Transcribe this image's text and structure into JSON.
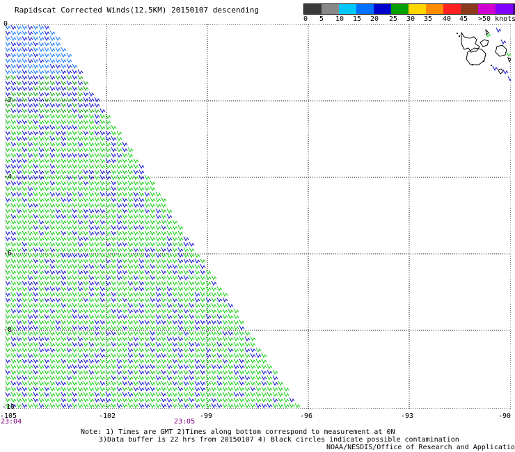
{
  "header": {
    "title": "Rapidscat Corrected Winds(12.5KM) 20150107 descending"
  },
  "legend": {
    "labels": [
      "0",
      "5",
      "10",
      "15",
      "20",
      "25",
      "30",
      "35",
      "40",
      "45",
      ">50 knots"
    ],
    "colors": [
      "#3a3a3a",
      "#888888",
      "#00c8ff",
      "#0070ff",
      "#0000cc",
      "#00a000",
      "#ffd700",
      "#ff8c00",
      "#ff2020",
      "#8b3a1a",
      "#d000d0",
      "#8000ff",
      "#400080"
    ]
  },
  "map": {
    "x_labels": [
      "-105",
      "-102",
      "-99",
      "-96",
      "-93",
      "-90"
    ],
    "y_labels": [
      "0",
      "-2",
      "-4",
      "-6",
      "-8",
      "-10"
    ],
    "times": [
      "23:04",
      "23:05"
    ]
  },
  "notes": {
    "line1": "Note: 1) Times are GMT 2)Times along bottom correspond to measurement at 0N",
    "line2": "3)Data buffer is 22 hrs from 20150107 4) Black circles indicate possible contamination",
    "line3": "NOAA/NESDIS/Office of Research and Applications"
  }
}
